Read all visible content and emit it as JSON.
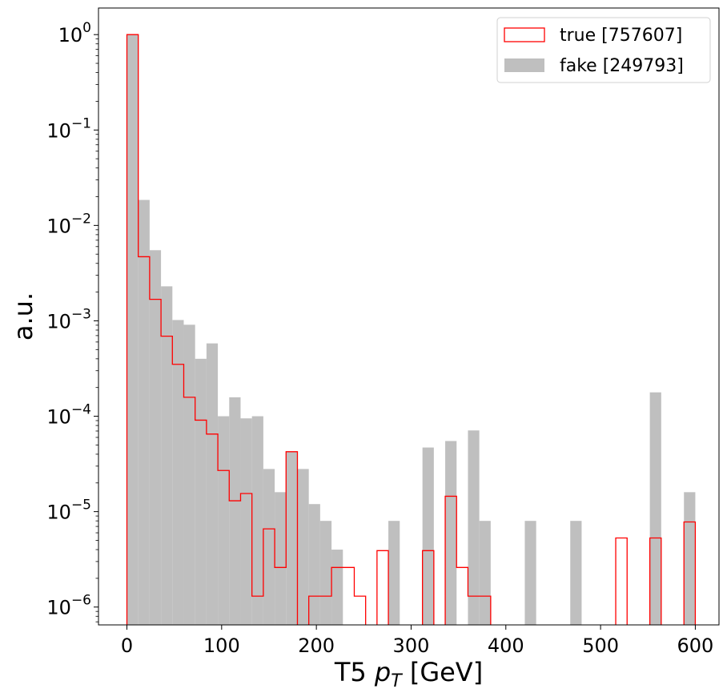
{
  "chart_data": {
    "type": "histogram",
    "xlabel_main": "T5 ",
    "xlabel_p": "p",
    "xlabel_sub": "T",
    "xlabel_unit": " [GeV]",
    "ylabel": "a.u.",
    "xlim": [
      -30,
      625
    ],
    "ylim": [
      6.5e-07,
      1.9
    ],
    "yscale": "log",
    "x_ticks": [
      0,
      100,
      200,
      300,
      400,
      500,
      600
    ],
    "y_ticks": [
      {
        "exp": 0,
        "label": "10",
        "sup": "0"
      },
      {
        "exp": -1,
        "label": "10",
        "sup": "−1"
      },
      {
        "exp": -2,
        "label": "10",
        "sup": "−2"
      },
      {
        "exp": -3,
        "label": "10",
        "sup": "−3"
      },
      {
        "exp": -4,
        "label": "10",
        "sup": "−4"
      },
      {
        "exp": -5,
        "label": "10",
        "sup": "−5"
      },
      {
        "exp": -6,
        "label": "10",
        "sup": "−6"
      }
    ],
    "bin_edges_start": 0,
    "bin_width": 12,
    "series": [
      {
        "name": "fake [249793]",
        "style": "filled",
        "color": "#bfbfbf",
        "values": [
          1.0,
          0.0185,
          0.0055,
          0.0023,
          0.00102,
          0.00091,
          0.0004,
          0.00058,
          0.0001,
          0.000158,
          9.5e-05,
          0.0001,
          2.8e-05,
          1.6e-05,
          4.2e-05,
          2.8e-05,
          1.2e-05,
          8e-06,
          4e-06,
          0,
          0,
          0,
          0,
          8e-06,
          0,
          0,
          4.7e-05,
          0,
          5.5e-05,
          0,
          7.1e-05,
          8e-06,
          0,
          0,
          0,
          8e-06,
          0,
          0,
          0,
          8e-06,
          0,
          0,
          0,
          0,
          0,
          0,
          0.000178,
          0,
          0,
          1.6e-05
        ]
      },
      {
        "name": "true [757607]",
        "style": "step",
        "color": "#ff0000",
        "values": [
          1.0,
          0.0047,
          0.00168,
          0.00069,
          0.00035,
          0.000158,
          9.1e-05,
          6.5e-05,
          2.7e-05,
          1.3e-05,
          1.55e-05,
          1.3e-06,
          6.6e-06,
          2.6e-06,
          4.25e-05,
          0,
          1.3e-06,
          1.3e-06,
          2.6e-06,
          2.6e-06,
          1.3e-06,
          0,
          3.9e-06,
          0,
          0,
          0,
          3.9e-06,
          0,
          1.45e-05,
          2.6e-06,
          1.3e-06,
          1.3e-06,
          0,
          0,
          0,
          0,
          0,
          0,
          0,
          0,
          0,
          0,
          0,
          5.3e-06,
          0,
          0,
          5.3e-06,
          0,
          0,
          7.8e-06
        ]
      }
    ],
    "legend_position": "top-right",
    "grid": false
  }
}
